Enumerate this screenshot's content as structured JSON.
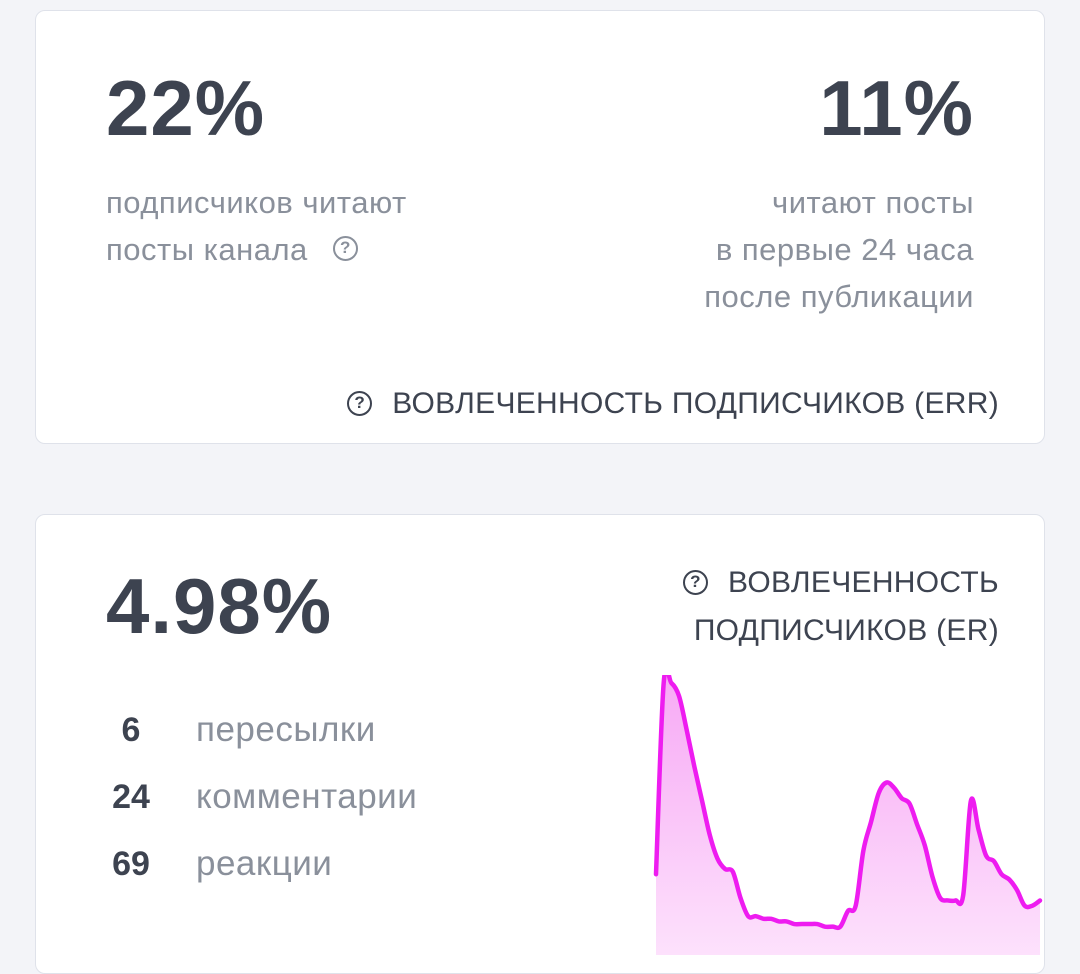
{
  "err_card": {
    "subscribers_read_pct": "22%",
    "subscribers_read_line1": "подписчиков читают",
    "subscribers_read_line2": "посты канала",
    "first_day_pct": "11%",
    "first_day_line1": "читают посты",
    "first_day_line2": "в первые 24 часа",
    "first_day_line3": "после публикации",
    "title": "ВОВЛЕЧЕННОСТЬ ПОДПИСЧИКОВ (ERR)",
    "help_icon": "question-circle-icon"
  },
  "er_card": {
    "er_pct": "4.98%",
    "title_line1": "ВОВЛЕЧЕННОСТЬ",
    "title_line2": "ПОДПИСЧИКОВ (ER)",
    "help_icon": "question-circle-icon",
    "stats": [
      {
        "count": "6",
        "label": "пересылки"
      },
      {
        "count": "24",
        "label": "комментарии"
      },
      {
        "count": "69",
        "label": "реакции"
      }
    ]
  },
  "icons": {
    "help": "?"
  },
  "colors": {
    "accent_line": "#ee1cf0",
    "accent_fill": "#fbd2fa",
    "text_dark": "#3d4350",
    "text_muted": "#8a909b",
    "card_bg": "#ffffff",
    "page_bg": "#f3f4f8"
  },
  "chart_data": {
    "type": "area",
    "title": "",
    "xlabel": "",
    "ylabel": "",
    "x": [
      0,
      1,
      2,
      3,
      4,
      5,
      6,
      7,
      8,
      9,
      10,
      11,
      12,
      13,
      14,
      15,
      16,
      17,
      18,
      19,
      20,
      21,
      22,
      23,
      24,
      25,
      26,
      27,
      28,
      29,
      30,
      31,
      32,
      33,
      34,
      35,
      36,
      37,
      38,
      39,
      40,
      41,
      42,
      43,
      44,
      45,
      46,
      47,
      48,
      49,
      50
    ],
    "values": [
      0.27,
      1.0,
      1.0,
      0.95,
      0.82,
      0.68,
      0.55,
      0.42,
      0.33,
      0.29,
      0.28,
      0.18,
      0.11,
      0.11,
      0.1,
      0.1,
      0.09,
      0.09,
      0.08,
      0.08,
      0.08,
      0.08,
      0.07,
      0.07,
      0.07,
      0.13,
      0.15,
      0.36,
      0.47,
      0.58,
      0.62,
      0.6,
      0.56,
      0.54,
      0.46,
      0.38,
      0.26,
      0.18,
      0.17,
      0.17,
      0.19,
      0.55,
      0.44,
      0.34,
      0.32,
      0.27,
      0.25,
      0.21,
      0.15,
      0.15,
      0.17
    ],
    "ylim": [
      0,
      1
    ],
    "grid": false,
    "legend": "none"
  }
}
